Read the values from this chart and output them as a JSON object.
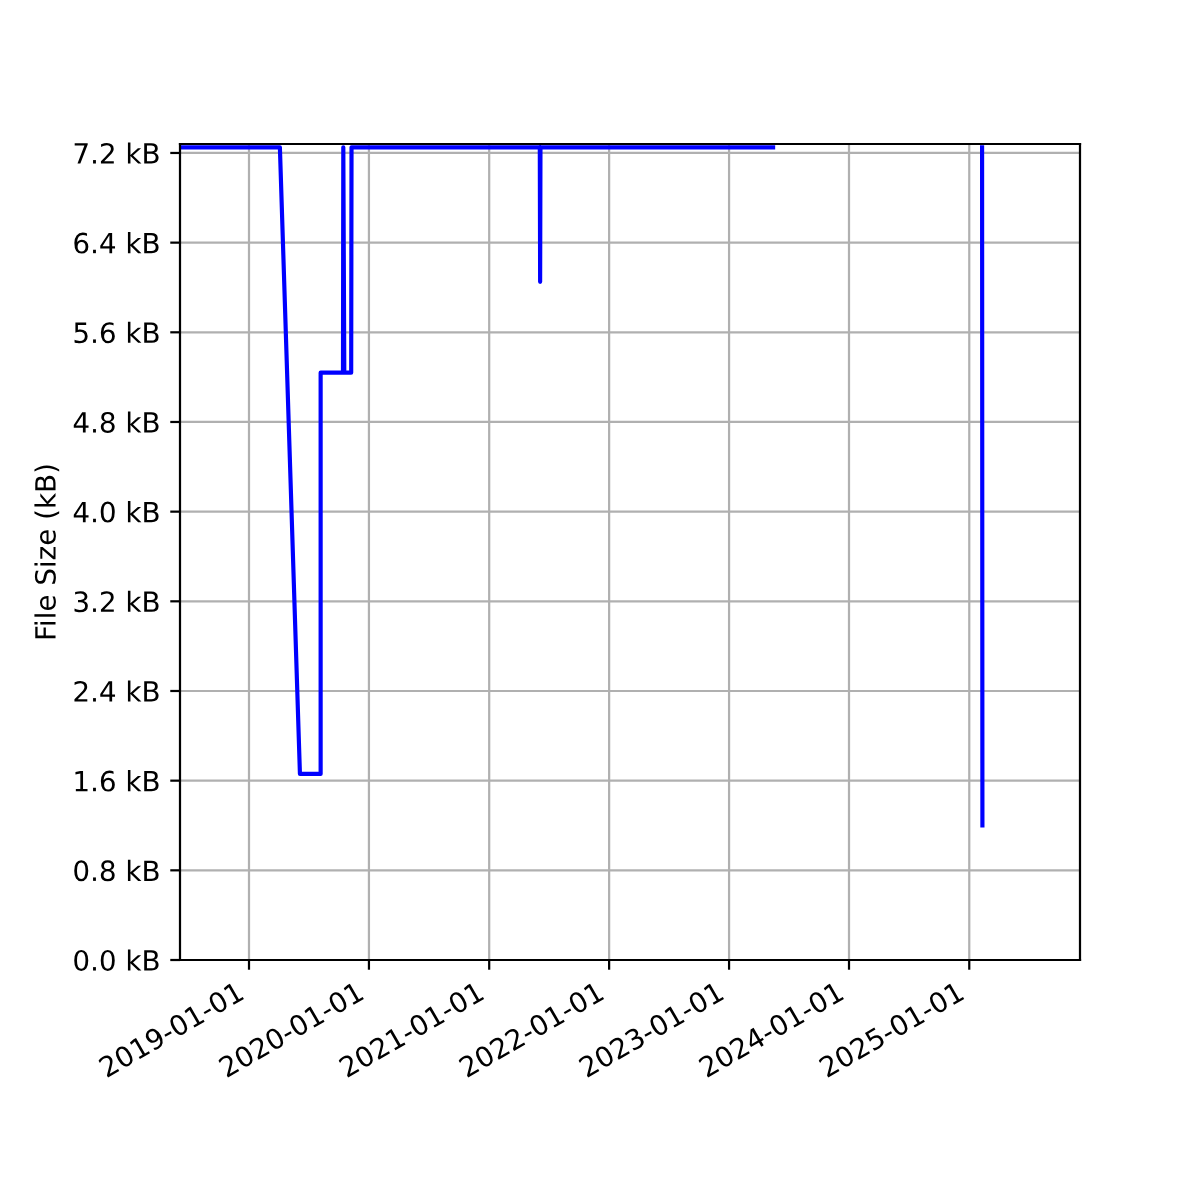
{
  "chart_data": {
    "type": "line",
    "ylabel": "File Size (kB)",
    "x": [
      "2018-06-05",
      "2019-04-05",
      "2019-06-05",
      "2019-08-07",
      "2019-08-07",
      "2019-10-14",
      "2019-10-15",
      "2019-10-18",
      "2019-11-08",
      "2019-11-09",
      "2021-06-04",
      "2021-06-05",
      "2021-06-06",
      "2023-05-15",
      "2024-03-01",
      "2025-02-09",
      "2025-02-10"
    ],
    "series": [
      {
        "color": "#0000ff",
        "values": [
          7.25,
          7.25,
          1.66,
          1.66,
          5.24,
          5.24,
          7.25,
          5.24,
          5.24,
          7.25,
          7.25,
          6.05,
          7.25,
          7.25,
          null,
          7.25,
          1.2
        ]
      }
    ],
    "xlim": [
      "2018-06-05",
      "2025-12-04"
    ],
    "xticks": [
      {
        "value": "2019-01-01",
        "label": "2019-01-01"
      },
      {
        "value": "2020-01-01",
        "label": "2020-01-01"
      },
      {
        "value": "2021-01-01",
        "label": "2021-01-01"
      },
      {
        "value": "2022-01-01",
        "label": "2022-01-01"
      },
      {
        "value": "2023-01-01",
        "label": "2023-01-01"
      },
      {
        "value": "2024-01-01",
        "label": "2024-01-01"
      },
      {
        "value": "2025-01-01",
        "label": "2025-01-01"
      }
    ],
    "ylim": [
      0,
      7.28
    ],
    "yticks": [
      {
        "value": 0,
        "label": "0.0 kB"
      },
      {
        "value": 0.8,
        "label": "0.8 kB"
      },
      {
        "value": 1.6,
        "label": "1.6 kB"
      },
      {
        "value": 2.4,
        "label": "2.4 kB"
      },
      {
        "value": 3.2,
        "label": "3.2 kB"
      },
      {
        "value": 4.0,
        "label": "4.0 kB"
      },
      {
        "value": 4.8,
        "label": "4.8 kB"
      },
      {
        "value": 5.6,
        "label": "5.6 kB"
      },
      {
        "value": 6.4,
        "label": "6.4 kB"
      },
      {
        "value": 7.2,
        "label": "7.2 kB"
      }
    ],
    "grid": true,
    "marker": "none",
    "line_style": "solid"
  }
}
